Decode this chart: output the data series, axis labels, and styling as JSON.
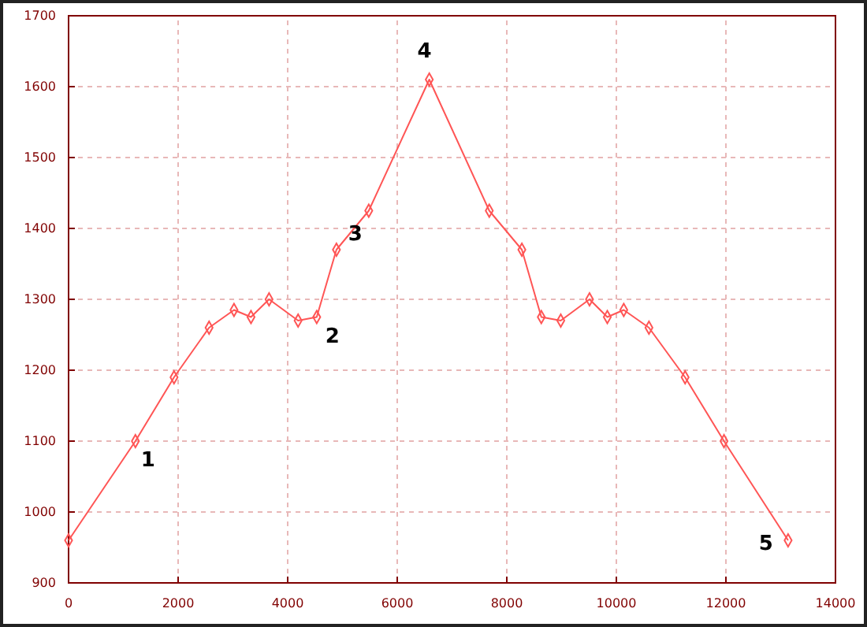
{
  "chart_data": {
    "type": "line",
    "x": [
      0,
      1220,
      1925,
      2565,
      3020,
      3330,
      3660,
      4190,
      4530,
      4890,
      5480,
      6585,
      7680,
      8275,
      8630,
      8985,
      9510,
      9835,
      10135,
      10595,
      11255,
      11965,
      13135
    ],
    "series": [
      {
        "color": "#ff5555",
        "values": [
          960,
          1100,
          1190,
          1260,
          1285,
          1275,
          1300,
          1270,
          1275,
          1370,
          1425,
          1610,
          1425,
          1370,
          1275,
          1270,
          1300,
          1275,
          1285,
          1260,
          1190,
          1100,
          960
        ]
      }
    ],
    "xlim": [
      0,
      14000
    ],
    "xticks": [
      0,
      2000,
      4000,
      6000,
      8000,
      10000,
      12000,
      14000
    ],
    "ylim": [
      900,
      1700
    ],
    "yticks": [
      900,
      1000,
      1100,
      1200,
      1300,
      1400,
      1500,
      1600,
      1700
    ],
    "grid": true,
    "marker": "diamond",
    "line_style": "solid",
    "annotations": [
      {
        "text": "1",
        "x": 1220,
        "y": 1100
      },
      {
        "text": "2",
        "x": 4530,
        "y": 1275
      },
      {
        "text": "3",
        "x": 4890,
        "y": 1370
      },
      {
        "text": "4",
        "x": 6585,
        "y": 1610
      },
      {
        "text": "5",
        "x": 13135,
        "y": 960
      }
    ]
  }
}
